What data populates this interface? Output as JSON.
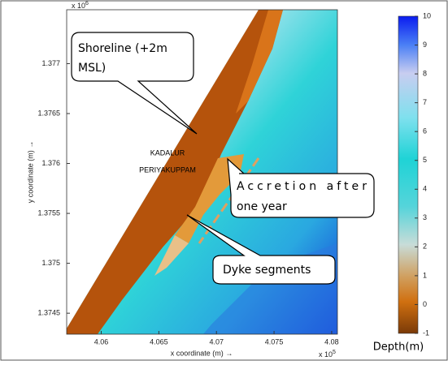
{
  "chart_data": {
    "type": "map",
    "xlabel": "x coordinate (m) →",
    "ylabel": "y coordinate (m) →",
    "x_multiplier": "x 10",
    "x_exponent": "5",
    "y_multiplier": "x 10",
    "y_exponent": "6",
    "xlim": [
      4.057,
      4.0805
    ],
    "xticks": [
      4.06,
      4.065,
      4.07,
      4.075,
      4.08
    ],
    "ylim": [
      1.37429,
      1.37754
    ],
    "yticks": [
      1.3745,
      1.375,
      1.3755,
      1.376,
      1.3765,
      1.377
    ],
    "colorbar": {
      "label": "Depth(m)",
      "lim": [
        -1,
        10
      ],
      "ticks": [
        -1,
        0,
        1,
        2,
        3,
        4,
        5,
        6,
        7,
        8,
        9,
        10
      ]
    },
    "place_labels": [
      "KADALUR",
      "PERIYAKUPPAM"
    ],
    "callouts": [
      {
        "lines": [
          "Shoreline (+2m",
          "MSL)"
        ]
      },
      {
        "lines": [
          "Accretion after",
          "one year"
        ]
      },
      {
        "lines": [
          "Dyke segments"
        ]
      }
    ]
  }
}
